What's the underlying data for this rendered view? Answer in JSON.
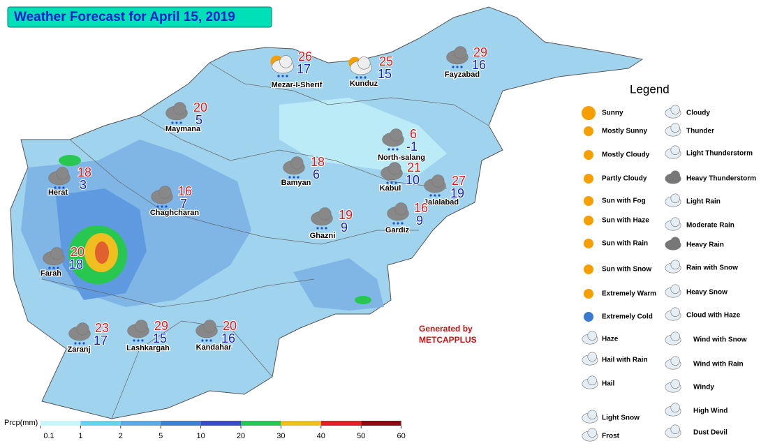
{
  "title": "Weather Forecast for April 15, 2019",
  "cities": [
    {
      "name": "Mezar-I-Sherif",
      "max": 26,
      "min": 17
    },
    {
      "name": "Kunduz",
      "max": 25,
      "min": 15
    },
    {
      "name": "Fayzabad",
      "max": 29,
      "min": 16
    },
    {
      "name": "Maymana",
      "max": 20,
      "min": 5
    },
    {
      "name": "North-salang",
      "max": 6,
      "min": -1
    },
    {
      "name": "Herat",
      "max": 18,
      "min": 3
    },
    {
      "name": "Bamyan",
      "max": 18,
      "min": 6
    },
    {
      "name": "Kabul",
      "max": 21,
      "min": 10
    },
    {
      "name": "Jalalabad",
      "max": 27,
      "min": 19
    },
    {
      "name": "Chaghcharan",
      "max": 16,
      "min": 7
    },
    {
      "name": "Ghazni",
      "max": 19,
      "min": 9
    },
    {
      "name": "Gardiz",
      "max": 16,
      "min": 9
    },
    {
      "name": "Farah",
      "max": 20,
      "min": 18
    },
    {
      "name": "Zaranj",
      "max": 23,
      "min": 17
    },
    {
      "name": "Lashkargah",
      "max": 29,
      "min": 15
    },
    {
      "name": "Kandahar",
      "max": 20,
      "min": 16
    }
  ],
  "credit": [
    "Generated by",
    "METCAPPLUS"
  ],
  "legend": {
    "title": "Legend",
    "left": [
      "Sunny",
      "Mostly Sunny",
      "Mostly Cloudy",
      "Partly Cloudy",
      "Sun with Fog",
      "Sun with Haze",
      "Sun with Rain",
      "Sun with Snow",
      "Extremely Warm",
      "Extremely Cold",
      "Haze",
      "Hail with Rain",
      "Hail",
      "Light Snow",
      "Frost"
    ],
    "right": [
      "Cloudy",
      "Thunder",
      "Light Thunderstorm",
      "Heavy Thunderstorm",
      "Light Rain",
      "Moderate Rain",
      "Heavy Rain",
      "Rain with Snow",
      "Heavy Snow",
      "Cloud with Haze",
      "Wind with Snow",
      "Wind with Rain",
      "Windy",
      "High Wind",
      "Dust Devil"
    ]
  },
  "colorbar": {
    "label": "Prcp(mm)",
    "ticks": [
      0.1,
      1,
      2,
      5,
      10,
      20,
      30,
      40,
      50,
      60
    ],
    "colors": [
      "#c8f5fa",
      "#64d2f0",
      "#5aaae6",
      "#3c82d2",
      "#3c4bc8",
      "#28c850",
      "#f0be1e",
      "#e61e28",
      "#8c0a14"
    ]
  }
}
